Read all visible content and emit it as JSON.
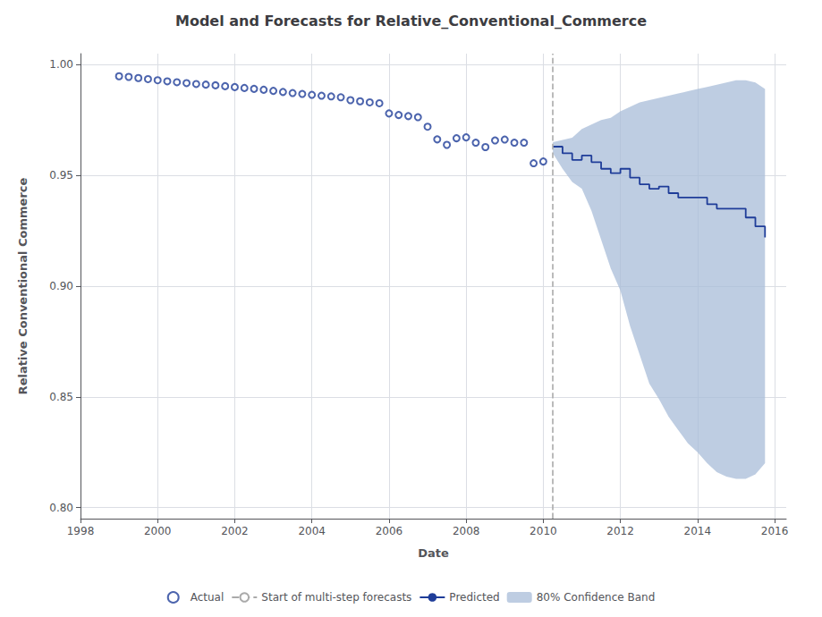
{
  "chart_data": {
    "type": "line",
    "title": "Model and Forecasts for Relative_Conventional_Commerce",
    "xlabel": "Date",
    "ylabel": "Relative Conventional Commerce",
    "xlim": [
      1998.0,
      2016.3
    ],
    "xticks": [
      1998,
      2000,
      2002,
      2004,
      2006,
      2008,
      2010,
      2012,
      2014,
      2016
    ],
    "ylim": [
      0.795,
      1.005
    ],
    "yticks": [
      {
        "value": 0.8,
        "label": "0.80"
      },
      0.85,
      {
        "value": 0.9,
        "label": "0.90"
      },
      0.95,
      {
        "value": 1.0,
        "label": "1.00"
      }
    ],
    "grid": true,
    "legend": "bottom",
    "series": [
      {
        "name": "Actual",
        "type": "scatter",
        "marker": "circle",
        "color": "#1f3d99",
        "x": [
          1999.0,
          1999.25,
          1999.5,
          1999.75,
          2000.0,
          2000.25,
          2000.5,
          2000.75,
          2001.0,
          2001.25,
          2001.5,
          2001.75,
          2002.0,
          2002.25,
          2002.5,
          2002.75,
          2003.0,
          2003.25,
          2003.5,
          2003.75,
          2004.0,
          2004.25,
          2004.5,
          2004.75,
          2005.0,
          2005.25,
          2005.5,
          2005.75,
          2006.0,
          2006.25,
          2006.5,
          2006.75,
          2007.0,
          2007.25,
          2007.5,
          2007.75,
          2008.0,
          2008.25,
          2008.5,
          2008.75,
          2009.0,
          2009.25,
          2009.5,
          2009.75,
          2010.0
        ],
        "values": [
          0.9948,
          0.9945,
          0.994,
          0.9935,
          0.993,
          0.9925,
          0.9921,
          0.9917,
          0.9913,
          0.991,
          0.9907,
          0.9903,
          0.9899,
          0.9895,
          0.9891,
          0.9887,
          0.9882,
          0.9877,
          0.9872,
          0.9868,
          0.9864,
          0.986,
          0.9857,
          0.9853,
          0.984,
          0.9835,
          0.983,
          0.9826,
          0.978,
          0.9773,
          0.9768,
          0.9763,
          0.972,
          0.9663,
          0.9638,
          0.9668,
          0.9672,
          0.9648,
          0.9628,
          0.9658,
          0.9662,
          0.9648,
          0.9648,
          0.9555,
          0.9563
        ]
      },
      {
        "name": "Start of multi-step forecasts",
        "type": "vline",
        "line_style": "dashed",
        "color": "#aaaaaa",
        "x": 2010.25
      },
      {
        "name": "Predicted",
        "type": "line",
        "line_style": "step",
        "color": "#1f3d99",
        "x": [
          2010.25,
          2010.5,
          2010.75,
          2011.0,
          2011.25,
          2011.5,
          2011.75,
          2012.0,
          2012.25,
          2012.5,
          2012.75,
          2013.0,
          2013.25,
          2013.5,
          2013.75,
          2014.0,
          2014.25,
          2014.5,
          2014.75,
          2015.0,
          2015.25,
          2015.5,
          2015.75
        ],
        "values": [
          0.963,
          0.96,
          0.957,
          0.959,
          0.956,
          0.953,
          0.951,
          0.953,
          0.949,
          0.946,
          0.944,
          0.945,
          0.942,
          0.94,
          0.94,
          0.94,
          0.937,
          0.935,
          0.935,
          0.935,
          0.931,
          0.927,
          0.922
        ]
      },
      {
        "name": "80% Confidence Band",
        "type": "band",
        "color": "#a8bcd8",
        "x": [
          2010.25,
          2010.5,
          2010.75,
          2011.0,
          2011.25,
          2011.5,
          2011.75,
          2012.0,
          2012.25,
          2012.5,
          2012.75,
          2013.0,
          2013.25,
          2013.5,
          2013.75,
          2014.0,
          2014.25,
          2014.5,
          2014.75,
          2015.0,
          2015.25,
          2015.5,
          2015.75
        ],
        "upper": [
          0.965,
          0.966,
          0.967,
          0.971,
          0.973,
          0.975,
          0.976,
          0.979,
          0.981,
          0.983,
          0.984,
          0.985,
          0.986,
          0.987,
          0.988,
          0.989,
          0.99,
          0.991,
          0.992,
          0.993,
          0.993,
          0.992,
          0.989
        ],
        "lower": [
          0.96,
          0.953,
          0.947,
          0.944,
          0.934,
          0.921,
          0.908,
          0.898,
          0.882,
          0.869,
          0.856,
          0.849,
          0.841,
          0.835,
          0.829,
          0.825,
          0.82,
          0.816,
          0.814,
          0.813,
          0.813,
          0.815,
          0.82
        ]
      }
    ]
  }
}
